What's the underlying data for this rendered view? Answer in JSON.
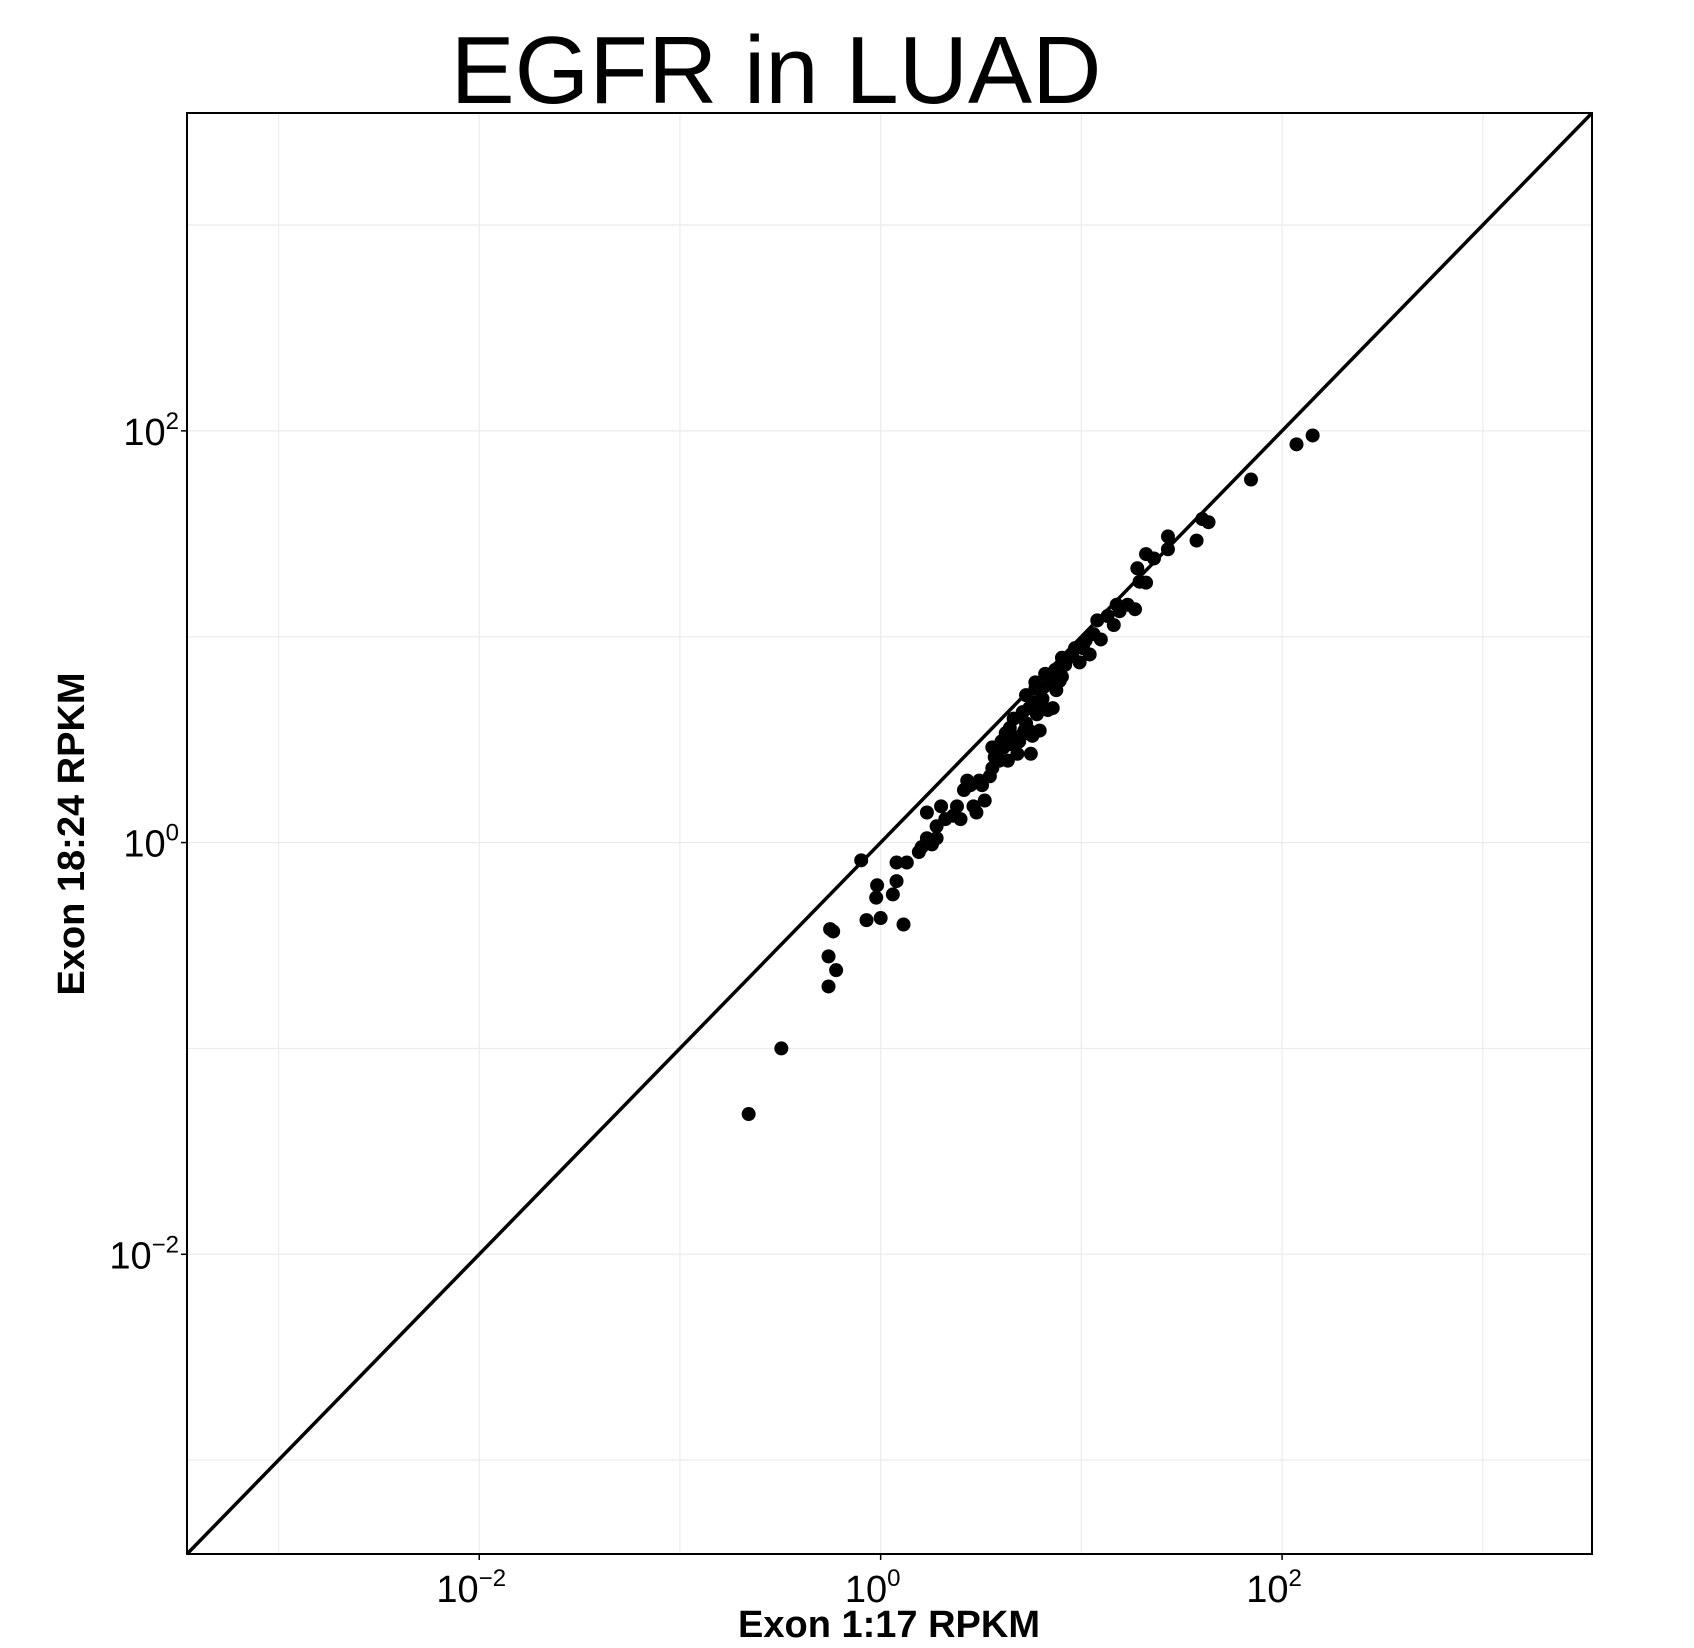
{
  "chart_data": {
    "type": "scatter",
    "title": "EGFR in LUAD",
    "xlabel": "Exon 1:17 RPKM",
    "ylabel": "Exon 18:24 RPKM",
    "x_scale": "log10",
    "y_scale": "log10",
    "xlim": [
      0.00035,
      3500
    ],
    "ylim": [
      0.00035,
      3500
    ],
    "grid": true,
    "legend": "none",
    "reference_line": "y = x",
    "x_ticks": [
      {
        "value": 0.01,
        "base": "10",
        "exp": "−2"
      },
      {
        "value": 1,
        "base": "10",
        "exp": "0"
      },
      {
        "value": 100,
        "base": "10",
        "exp": "2"
      }
    ],
    "y_ticks": [
      {
        "value": 0.01,
        "base": "10",
        "exp": "−2"
      },
      {
        "value": 1,
        "base": "10",
        "exp": "0"
      },
      {
        "value": 100,
        "base": "10",
        "exp": "2"
      }
    ],
    "points": [
      [
        0.22,
        0.048
      ],
      [
        0.32,
        0.1
      ],
      [
        0.55,
        0.2
      ],
      [
        0.6,
        0.24
      ],
      [
        0.55,
        0.28
      ],
      [
        0.58,
        0.37
      ],
      [
        0.56,
        0.38
      ],
      [
        0.8,
        0.82
      ],
      [
        0.85,
        0.42
      ],
      [
        0.96,
        0.62
      ],
      [
        0.95,
        0.54
      ],
      [
        1.0,
        0.43
      ],
      [
        1.15,
        0.56
      ],
      [
        1.2,
        0.65
      ],
      [
        1.2,
        0.8
      ],
      [
        1.3,
        0.4
      ],
      [
        1.35,
        0.8
      ],
      [
        1.55,
        0.9
      ],
      [
        1.6,
        0.95
      ],
      [
        1.7,
        1.05
      ],
      [
        1.8,
        0.98
      ],
      [
        1.9,
        1.05
      ],
      [
        1.7,
        1.4
      ],
      [
        1.9,
        1.2
      ],
      [
        2.0,
        1.5
      ],
      [
        2.1,
        1.3
      ],
      [
        2.3,
        1.35
      ],
      [
        2.4,
        1.5
      ],
      [
        2.5,
        1.3
      ],
      [
        2.6,
        1.8
      ],
      [
        2.7,
        2.0
      ],
      [
        2.9,
        1.5
      ],
      [
        2.8,
        1.9
      ],
      [
        3.0,
        1.4
      ],
      [
        3.1,
        2.0
      ],
      [
        3.2,
        1.9
      ],
      [
        3.3,
        1.6
      ],
      [
        3.5,
        2.1
      ],
      [
        3.6,
        2.9
      ],
      [
        3.6,
        2.3
      ],
      [
        3.7,
        2.6
      ],
      [
        3.8,
        2.7
      ],
      [
        3.9,
        2.5
      ],
      [
        4.0,
        3.1
      ],
      [
        4.1,
        2.9
      ],
      [
        4.2,
        3.4
      ],
      [
        4.3,
        2.5
      ],
      [
        4.4,
        3.6
      ],
      [
        4.5,
        3.0
      ],
      [
        4.6,
        3.2
      ],
      [
        4.6,
        4.0
      ],
      [
        4.8,
        2.7
      ],
      [
        4.9,
        3.1
      ],
      [
        5.0,
        3.3
      ],
      [
        5.1,
        4.3
      ],
      [
        5.2,
        3.5
      ],
      [
        5.3,
        3.8
      ],
      [
        5.3,
        5.2
      ],
      [
        5.5,
        3.5
      ],
      [
        5.5,
        4.5
      ],
      [
        5.6,
        2.7
      ],
      [
        5.7,
        3.3
      ],
      [
        5.8,
        4.8
      ],
      [
        5.9,
        5.6
      ],
      [
        5.9,
        6.0
      ],
      [
        6.0,
        4.2
      ],
      [
        6.2,
        3.5
      ],
      [
        6.3,
        4.5
      ],
      [
        6.4,
        5.0
      ],
      [
        6.5,
        5.7
      ],
      [
        6.6,
        6.6
      ],
      [
        6.8,
        4.4
      ],
      [
        7.0,
        6.1
      ],
      [
        7.2,
        4.5
      ],
      [
        7.4,
        6.9
      ],
      [
        7.5,
        5.5
      ],
      [
        7.6,
        6.1
      ],
      [
        7.7,
        7.0
      ],
      [
        7.8,
        6.1
      ],
      [
        8.0,
        6.4
      ],
      [
        8.0,
        7.9
      ],
      [
        8.3,
        7.3
      ],
      [
        8.6,
        7.9
      ],
      [
        9.0,
        8.2
      ],
      [
        9.3,
        8.8
      ],
      [
        9.8,
        7.5
      ],
      [
        10.2,
        8.8
      ],
      [
        10.5,
        9.6
      ],
      [
        11.0,
        8.2
      ],
      [
        11.5,
        10.3
      ],
      [
        12.0,
        12.0
      ],
      [
        12.5,
        9.7
      ],
      [
        13.5,
        12.6
      ],
      [
        14.5,
        11.4
      ],
      [
        15.0,
        14.3
      ],
      [
        15.5,
        13.3
      ],
      [
        17.0,
        14.3
      ],
      [
        18.5,
        13.6
      ],
      [
        19.0,
        21.5
      ],
      [
        19.5,
        18.5
      ],
      [
        21.0,
        18.3
      ],
      [
        21.0,
        25.2
      ],
      [
        23.0,
        24.0
      ],
      [
        27.0,
        26.6
      ],
      [
        27.0,
        30.7
      ],
      [
        37.5,
        29.3
      ],
      [
        40.0,
        37.3
      ],
      [
        43.0,
        36.0
      ],
      [
        70.0,
        58.0
      ],
      [
        118.0,
        86.0
      ],
      [
        142.0,
        95.0
      ]
    ]
  }
}
